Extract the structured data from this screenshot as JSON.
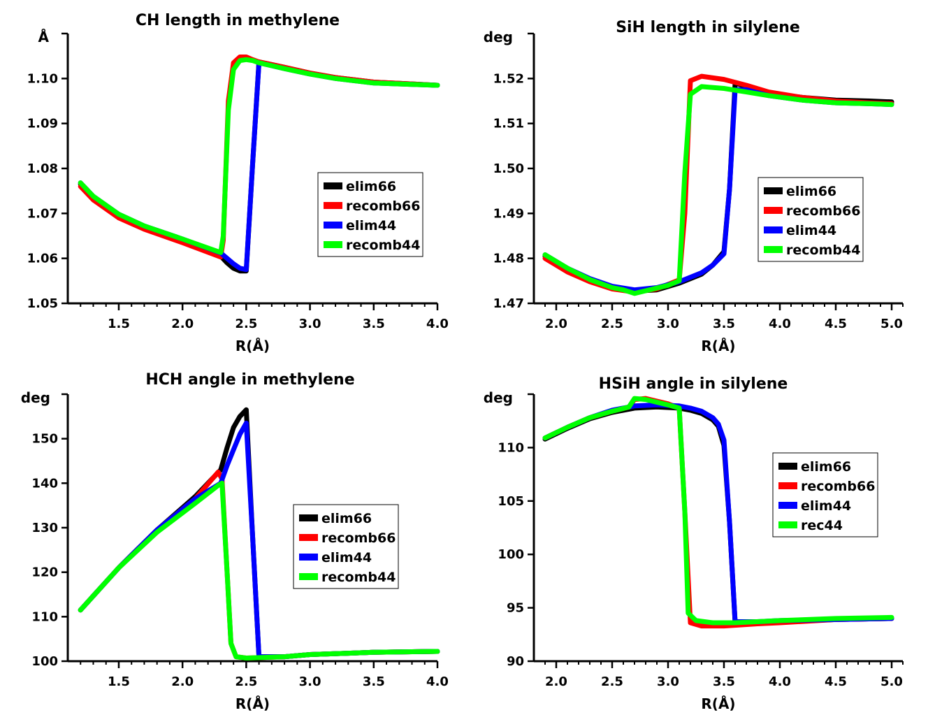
{
  "chart_data": [
    {
      "type": "line",
      "title": "CH length in methylene",
      "xlabel": "R(Å)",
      "ylabel": "Å",
      "xlim": [
        1.1,
        4.0
      ],
      "ylim": [
        1.05,
        1.11
      ],
      "xticks": [
        1.5,
        2.0,
        2.5,
        3.0,
        3.5,
        4.0
      ],
      "xtick_labels": [
        "1.5",
        "2.0",
        "2.5",
        "3.0",
        "3.5",
        "4.0"
      ],
      "yticks": [
        1.05,
        1.06,
        1.07,
        1.08,
        1.09,
        1.1
      ],
      "ytick_labels": [
        "1.05",
        "1.06",
        "1.07",
        "1.08",
        "1.09",
        "1.10"
      ],
      "legend": "center-right",
      "series": [
        {
          "name": "elim66",
          "color": "#000000",
          "x": [
            1.2,
            1.3,
            1.5,
            1.7,
            2.0,
            2.3,
            2.35,
            2.4,
            2.45,
            2.5,
            2.55,
            2.6,
            2.8,
            3.0,
            3.2,
            3.5,
            3.8,
            4.0
          ],
          "y": [
            1.0765,
            1.0735,
            1.0695,
            1.067,
            1.064,
            1.0605,
            1.059,
            1.0578,
            1.0572,
            1.0572,
            1.081,
            1.1037,
            1.1025,
            1.1012,
            1.1002,
            1.0992,
            1.0988,
            1.0985
          ]
        },
        {
          "name": "recomb66",
          "color": "#ff0000",
          "x": [
            1.2,
            1.3,
            1.5,
            1.7,
            2.0,
            2.3,
            2.32,
            2.36,
            2.4,
            2.45,
            2.5,
            2.55,
            2.6,
            2.8,
            3.0,
            3.2,
            3.5,
            3.8,
            4.0
          ],
          "y": [
            1.076,
            1.073,
            1.069,
            1.0665,
            1.0635,
            1.0603,
            1.064,
            1.095,
            1.1035,
            1.1048,
            1.1048,
            1.1042,
            1.1037,
            1.1025,
            1.1012,
            1.1002,
            1.0992,
            1.0988,
            1.0985
          ]
        },
        {
          "name": "elim44",
          "color": "#0000ff",
          "x": [
            1.2,
            1.3,
            1.5,
            1.7,
            2.0,
            2.3,
            2.35,
            2.4,
            2.45,
            2.5,
            2.55,
            2.6,
            2.8,
            3.0,
            3.2,
            3.5,
            3.8,
            4.0
          ],
          "y": [
            1.0768,
            1.0738,
            1.0698,
            1.0672,
            1.0643,
            1.0612,
            1.06,
            1.0588,
            1.0578,
            1.0575,
            1.081,
            1.1035,
            1.1022,
            1.101,
            1.1,
            1.099,
            1.0987,
            1.0985
          ]
        },
        {
          "name": "recomb44",
          "color": "#00ff00",
          "x": [
            1.2,
            1.3,
            1.5,
            1.7,
            2.0,
            2.3,
            2.32,
            2.36,
            2.4,
            2.45,
            2.5,
            2.55,
            2.6,
            2.8,
            3.0,
            3.2,
            3.5,
            3.8,
            4.0
          ],
          "y": [
            1.0768,
            1.0738,
            1.0698,
            1.0672,
            1.0643,
            1.0613,
            1.065,
            1.093,
            1.102,
            1.104,
            1.1042,
            1.104,
            1.1035,
            1.1022,
            1.101,
            1.1,
            1.099,
            1.0987,
            1.0985
          ]
        }
      ]
    },
    {
      "type": "line",
      "title": "SiH length in silylene",
      "xlabel": "R(Å)",
      "ylabel": "deg",
      "xlim": [
        1.8,
        5.1
      ],
      "ylim": [
        1.47,
        1.53
      ],
      "xticks": [
        2.0,
        2.5,
        3.0,
        3.5,
        4.0,
        4.5,
        5.0
      ],
      "xtick_labels": [
        "2.0",
        "2.5",
        "3.0",
        "3.5",
        "4.0",
        "4.5",
        "5.0"
      ],
      "yticks": [
        1.47,
        1.48,
        1.49,
        1.5,
        1.51,
        1.52
      ],
      "ytick_labels": [
        "1.47",
        "1.48",
        "1.49",
        "1.50",
        "1.51",
        "1.52"
      ],
      "legend": "center-right",
      "series": [
        {
          "name": "elim66",
          "color": "#000000",
          "x": [
            1.9,
            2.1,
            2.3,
            2.5,
            2.7,
            2.9,
            3.1,
            3.3,
            3.4,
            3.5,
            3.55,
            3.6,
            3.7,
            3.9,
            4.2,
            4.5,
            4.8,
            5.0
          ],
          "y": [
            1.4805,
            1.4775,
            1.4752,
            1.4735,
            1.4727,
            1.473,
            1.4745,
            1.4765,
            1.4785,
            1.4815,
            1.4955,
            1.519,
            1.5182,
            1.5168,
            1.5158,
            1.5152,
            1.515,
            1.5148
          ]
        },
        {
          "name": "recomb66",
          "color": "#ff0000",
          "x": [
            1.9,
            2.1,
            2.3,
            2.5,
            2.7,
            2.9,
            3.1,
            3.15,
            3.2,
            3.3,
            3.5,
            3.7,
            3.9,
            4.2,
            4.5,
            4.8,
            5.0
          ],
          "y": [
            1.48,
            1.477,
            1.4748,
            1.4732,
            1.4725,
            1.4732,
            1.4752,
            1.49,
            1.5195,
            1.5205,
            1.5198,
            1.5185,
            1.517,
            1.5158,
            1.515,
            1.5146,
            1.5144
          ]
        },
        {
          "name": "elim44",
          "color": "#0000ff",
          "x": [
            1.9,
            2.1,
            2.3,
            2.5,
            2.7,
            2.9,
            3.1,
            3.3,
            3.4,
            3.5,
            3.55,
            3.6,
            3.7,
            3.9,
            4.2,
            4.5,
            4.8,
            5.0
          ],
          "y": [
            1.4808,
            1.4778,
            1.4755,
            1.4738,
            1.473,
            1.4735,
            1.4748,
            1.4768,
            1.4785,
            1.481,
            1.4955,
            1.5175,
            1.5175,
            1.5162,
            1.5152,
            1.5146,
            1.5144,
            1.5142
          ]
        },
        {
          "name": "recomb44",
          "color": "#00ff00",
          "x": [
            1.9,
            2.1,
            2.3,
            2.5,
            2.6,
            2.7,
            2.8,
            3.0,
            3.1,
            3.15,
            3.2,
            3.3,
            3.5,
            3.7,
            3.9,
            4.2,
            4.5,
            4.8,
            5.0
          ],
          "y": [
            1.4808,
            1.4778,
            1.4753,
            1.4735,
            1.473,
            1.4722,
            1.4728,
            1.474,
            1.475,
            1.499,
            1.5165,
            1.5182,
            1.5178,
            1.517,
            1.5162,
            1.5152,
            1.5146,
            1.5144,
            1.5142
          ]
        }
      ]
    },
    {
      "type": "line",
      "title": "HCH angle in methylene",
      "xlabel": "R(Å)",
      "ylabel": "deg",
      "xlim": [
        1.1,
        4.0
      ],
      "ylim": [
        100,
        160
      ],
      "xticks": [
        1.5,
        2.0,
        2.5,
        3.0,
        3.5,
        4.0
      ],
      "xtick_labels": [
        "1.5",
        "2.0",
        "2.5",
        "3.0",
        "3.5",
        "4.0"
      ],
      "yticks": [
        100,
        110,
        120,
        130,
        140,
        150
      ],
      "ytick_labels": [
        "100",
        "110",
        "120",
        "130",
        "140",
        "150"
      ],
      "legend": "center-right",
      "series": [
        {
          "name": "elim66",
          "color": "#000000",
          "x": [
            1.2,
            1.5,
            1.8,
            2.1,
            2.3,
            2.35,
            2.4,
            2.45,
            2.5,
            2.55,
            2.6,
            2.8,
            3.0,
            3.5,
            4.0
          ],
          "y": [
            111.5,
            121,
            129.5,
            137,
            143,
            148,
            152.5,
            155,
            156.5,
            128,
            101,
            101,
            101.5,
            102,
            102.2
          ]
        },
        {
          "name": "recomb66",
          "color": "#ff0000",
          "x": [
            1.2,
            1.5,
            1.8,
            2.1,
            2.28,
            2.31,
            2.35,
            2.38,
            2.42,
            2.5,
            2.8,
            3.0,
            3.5,
            4.0
          ],
          "y": [
            111.5,
            121,
            129.5,
            136.5,
            142.5,
            141,
            120,
            104,
            101,
            100.7,
            101,
            101.5,
            102,
            102.2
          ]
        },
        {
          "name": "elim44",
          "color": "#0000ff",
          "x": [
            1.2,
            1.5,
            1.8,
            2.1,
            2.3,
            2.35,
            2.4,
            2.45,
            2.5,
            2.55,
            2.6,
            2.8,
            3.0,
            3.5,
            4.0
          ],
          "y": [
            111.5,
            121,
            129.5,
            136.5,
            140,
            144,
            147.5,
            151,
            153.5,
            128,
            101,
            101,
            101.5,
            102,
            102.2
          ]
        },
        {
          "name": "recomb44",
          "color": "#00ff00",
          "x": [
            1.2,
            1.5,
            1.8,
            2.1,
            2.28,
            2.31,
            2.35,
            2.38,
            2.42,
            2.5,
            2.8,
            3.0,
            3.5,
            4.0
          ],
          "y": [
            111.5,
            121,
            129,
            135.5,
            139.5,
            140,
            120,
            104,
            101,
            100.7,
            101,
            101.5,
            102,
            102.2
          ]
        }
      ]
    },
    {
      "type": "line",
      "title": "HSiH angle in silylene",
      "xlabel": "R(Å)",
      "ylabel": "deg",
      "xlim": [
        1.8,
        5.1
      ],
      "ylim": [
        90,
        115
      ],
      "xticks": [
        2.0,
        2.5,
        3.0,
        3.5,
        4.0,
        4.5,
        5.0
      ],
      "xtick_labels": [
        "2.0",
        "2.5",
        "3.0",
        "3.5",
        "4.0",
        "4.5",
        "5.0"
      ],
      "yticks": [
        90,
        95,
        100,
        105,
        110
      ],
      "ytick_labels": [
        "90",
        "95",
        "100",
        "105",
        "110"
      ],
      "legend": "center-right",
      "series": [
        {
          "name": "elim66",
          "color": "#000000",
          "x": [
            1.9,
            2.1,
            2.3,
            2.5,
            2.7,
            2.9,
            3.1,
            3.2,
            3.3,
            3.4,
            3.45,
            3.5,
            3.55,
            3.6,
            3.8,
            4.0,
            4.5,
            5.0
          ],
          "y": [
            110.8,
            111.8,
            112.7,
            113.3,
            113.7,
            113.8,
            113.7,
            113.5,
            113.2,
            112.6,
            112,
            110.2,
            103,
            93.6,
            93.6,
            93.7,
            93.9,
            94
          ]
        },
        {
          "name": "recomb66",
          "color": "#ff0000",
          "x": [
            1.9,
            2.1,
            2.3,
            2.5,
            2.65,
            2.7,
            2.8,
            3.0,
            3.1,
            3.15,
            3.2,
            3.3,
            3.5,
            3.8,
            4.0,
            4.5,
            5.0
          ],
          "y": [
            110.9,
            111.9,
            112.8,
            113.4,
            113.8,
            114.5,
            114.6,
            114.1,
            113.7,
            104,
            93.6,
            93.3,
            93.3,
            93.5,
            93.6,
            93.9,
            94
          ]
        },
        {
          "name": "elim44",
          "color": "#0000ff",
          "x": [
            1.9,
            2.1,
            2.3,
            2.5,
            2.7,
            2.9,
            3.1,
            3.2,
            3.3,
            3.4,
            3.45,
            3.5,
            3.55,
            3.6,
            3.8,
            4.0,
            4.5,
            5.0
          ],
          "y": [
            110.9,
            111.9,
            112.8,
            113.5,
            113.9,
            114.0,
            113.9,
            113.7,
            113.4,
            112.8,
            112.2,
            110.7,
            103,
            93.7,
            93.7,
            93.8,
            93.9,
            94
          ]
        },
        {
          "name": "rec44",
          "color": "#00ff00",
          "x": [
            1.9,
            2.1,
            2.3,
            2.5,
            2.65,
            2.7,
            2.8,
            3.0,
            3.1,
            3.15,
            3.18,
            3.25,
            3.4,
            3.6,
            4.0,
            4.5,
            5.0
          ],
          "y": [
            110.9,
            111.9,
            112.8,
            113.4,
            113.8,
            114.6,
            114.5,
            114,
            113.7,
            104,
            94.5,
            93.8,
            93.6,
            93.6,
            93.8,
            94,
            94.1
          ]
        }
      ]
    }
  ]
}
